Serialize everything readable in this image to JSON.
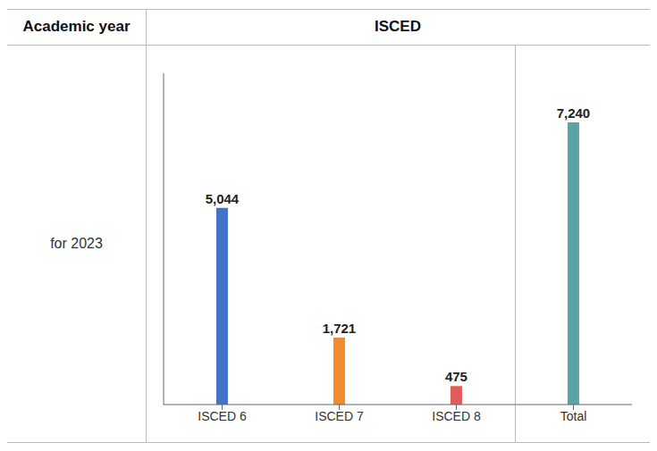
{
  "chart_data": {
    "type": "bar",
    "categories": [
      "ISCED 6",
      "ISCED 7",
      "ISCED 8",
      "Total"
    ],
    "values": [
      5044,
      1721,
      475,
      7240
    ],
    "value_labels": [
      "5,044",
      "1,721",
      "475",
      "7,240"
    ],
    "colors": [
      "#4472C4",
      "#F28B30",
      "#E05C5C",
      "#5BA4A4"
    ],
    "ylim": [
      0,
      8500
    ],
    "yticks": [],
    "grid": false,
    "data_labels": true,
    "tick_labels": "x",
    "annotations": [
      "Academic year",
      "ISCED",
      "for 2023"
    ]
  }
}
